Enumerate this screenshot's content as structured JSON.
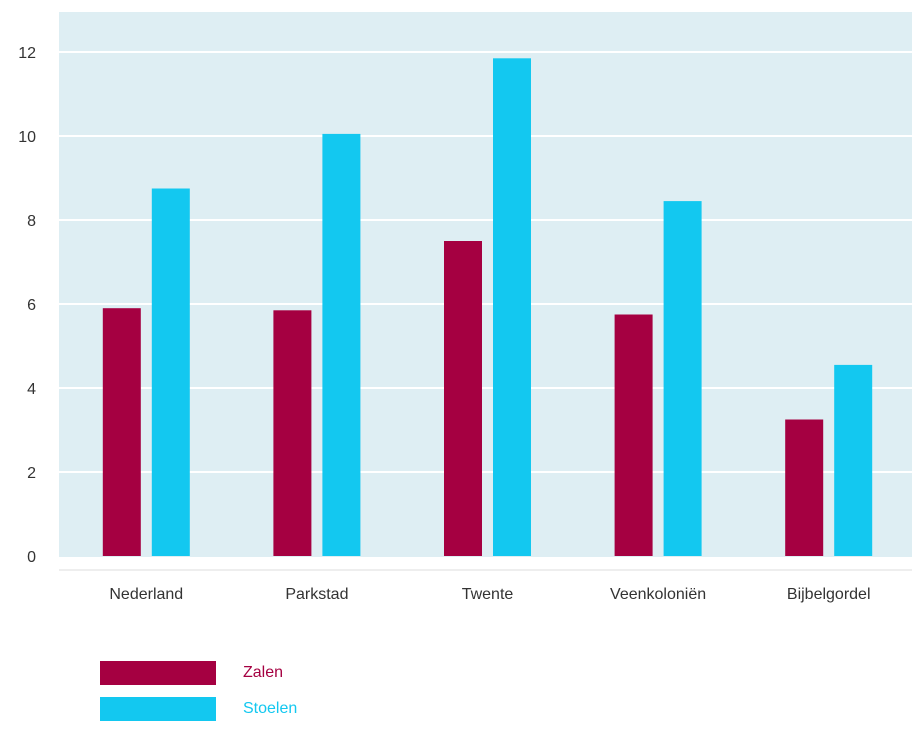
{
  "chart_data": {
    "type": "bar",
    "categories": [
      "Nederland",
      "Parkstad",
      "Twente",
      "Veenkoloniën",
      "Bijbelgordel"
    ],
    "series": [
      {
        "name": "Zalen",
        "values": [
          5.9,
          5.85,
          7.5,
          5.75,
          3.25
        ],
        "color": "#a50041"
      },
      {
        "name": "Stoelen",
        "values": [
          8.75,
          10.05,
          11.85,
          8.45,
          4.55
        ],
        "color": "#13c8f0"
      }
    ],
    "ylim": [
      0,
      13
    ],
    "yticks": [
      0,
      2,
      4,
      6,
      8,
      10,
      12
    ],
    "grid": true,
    "plot_background": "#deeef3",
    "legend_position": "bottom-left"
  }
}
